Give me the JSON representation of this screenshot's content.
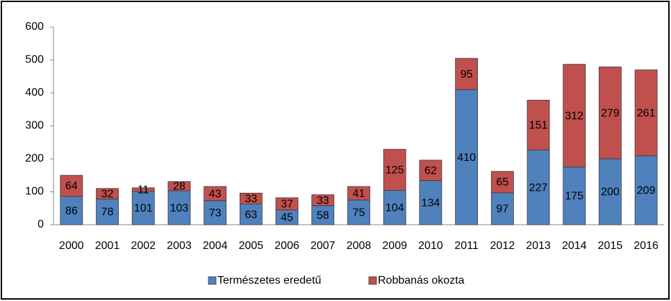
{
  "chart_data": {
    "type": "stacked_bar",
    "categories": [
      "2000",
      "2001",
      "2002",
      "2003",
      "2004",
      "2005",
      "2006",
      "2007",
      "2008",
      "2009",
      "2010",
      "2011",
      "2012",
      "2013",
      "2014",
      "2015",
      "2016"
    ],
    "series": [
      {
        "name": "Természetes eredetű",
        "color": "#4f81bd",
        "values": [
          86,
          78,
          101,
          103,
          73,
          63,
          45,
          58,
          75,
          104,
          134,
          410,
          97,
          227,
          175,
          200,
          209
        ]
      },
      {
        "name": "Robbanás okozta",
        "color": "#c0504d",
        "values": [
          64,
          32,
          11,
          28,
          43,
          33,
          37,
          33,
          41,
          125,
          62,
          95,
          65,
          151,
          312,
          279,
          261
        ]
      }
    ],
    "ylim": [
      0,
      600
    ],
    "yticks": [
      0,
      100,
      200,
      300,
      400,
      500,
      600
    ],
    "legend": "bottom"
  }
}
